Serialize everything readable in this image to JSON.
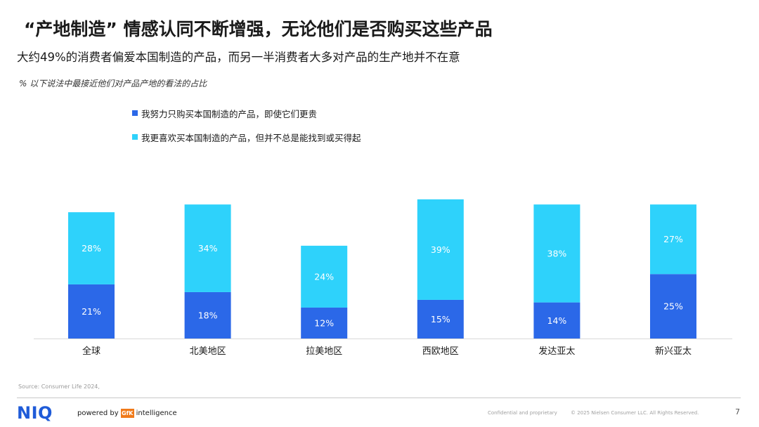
{
  "header": {
    "title": "“产地制造”  情感认同不断增强，无论他们是否购买这些产品",
    "subtitle": "大约49%的消费者偏爱本国制造的产品，而另一半消费者大多对产品的生产地并不在意",
    "note": "% 以下说法中最接近他们对产品产地的看法的占比"
  },
  "colors": {
    "series_1": "#2b68e8",
    "series_2": "#2ed2fb",
    "label_text": "#ffffff",
    "axis": "#d9d9d9",
    "brand": "#1f5bd8"
  },
  "chart_data": {
    "type": "bar",
    "stacked": true,
    "categories": [
      "全球",
      "北美地区",
      "拉美地区",
      "西欧地区",
      "发达亚太",
      "新兴亚太"
    ],
    "series": [
      {
        "name": "我努力只购买本国制造的产品，即使它们更贵",
        "values": [
          21,
          18,
          12,
          15,
          14,
          25
        ],
        "labels": [
          "21%",
          "18%",
          "12%",
          "15%",
          "14%",
          "25%"
        ]
      },
      {
        "name": "我更喜欢买本国制造的产品，但并不总是能找到或买得起",
        "values": [
          28,
          34,
          24,
          39,
          38,
          27
        ],
        "labels": [
          "28%",
          "34%",
          "24%",
          "39%",
          "38%",
          "27%"
        ]
      }
    ],
    "legend_position": "top-left",
    "grid": false,
    "ylim": [
      0,
      60
    ]
  },
  "footer": {
    "source": "Source: Consumer Life 2024,",
    "logo": "NIQ",
    "powered_by": "powered by",
    "gfk": "GfK",
    "intelligence": "intelligence",
    "confidential": "Confidential and proprietary",
    "copyright": "© 2025 Nielsen Consumer LLC. All Rights Reserved.",
    "page": "7"
  }
}
